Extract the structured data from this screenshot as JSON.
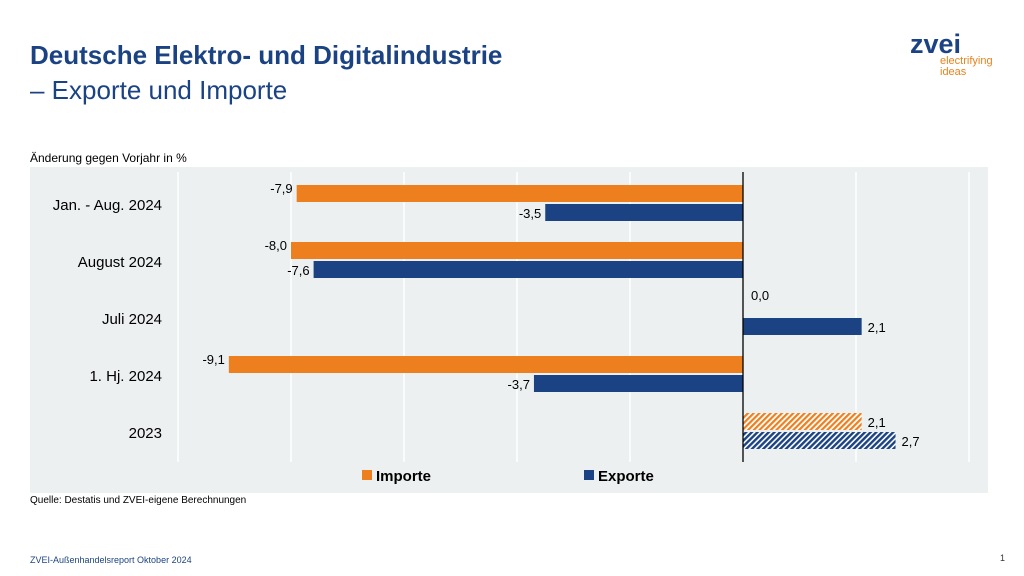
{
  "header": {
    "title": "Deutsche Elektro- und Digitalindustrie",
    "subtitle": "– Exporte und Importe"
  },
  "logo": {
    "name": "zvei",
    "tagline1": "electrifying",
    "tagline2": "ideas"
  },
  "footer": {
    "source": "Quelle: Destatis und ZVEI-eigene Berechnungen",
    "report": "ZVEI-Außenhandelsreport Oktober 2024",
    "page": "1"
  },
  "chart_data": {
    "type": "bar",
    "orientation": "horizontal",
    "ylabel": "Änderung gegen Vorjahr in %",
    "categories": [
      "Jan. - Aug. 2024",
      "August 2024",
      "Juli 2024",
      "1. Hj. 2024",
      "2023"
    ],
    "series": [
      {
        "name": "Importe",
        "color": "#ee7f1e",
        "values": [
          -7.9,
          -8.0,
          0.0,
          -9.1,
          2.1
        ],
        "labels": [
          "-7,9",
          "-8,0",
          "0,0",
          "-9,1",
          "2,1"
        ]
      },
      {
        "name": "Exporte",
        "color": "#1b4383",
        "values": [
          -3.5,
          -7.6,
          2.1,
          -3.7,
          2.7
        ],
        "labels": [
          "-3,5",
          "-7,6",
          "2,1",
          "-3,7",
          "2,7"
        ]
      }
    ],
    "hatched_categories": [
      "2023"
    ],
    "xlim": [
      -10,
      4
    ],
    "grid": true,
    "legend": "bottom"
  }
}
